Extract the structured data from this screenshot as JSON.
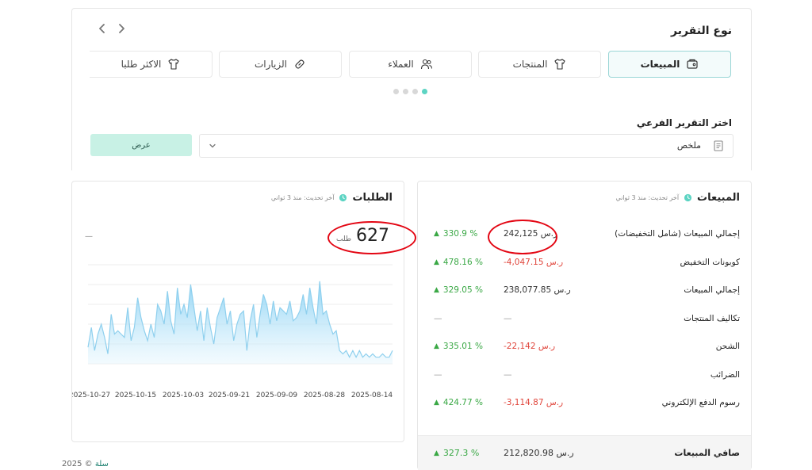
{
  "header": {
    "title": "نوع التقرير",
    "nav_icons": [
      "chevron-left-icon",
      "chevron-right-icon"
    ]
  },
  "tabs": [
    {
      "label": "المبيعات",
      "icon": "sales-icon",
      "active": true
    },
    {
      "label": "المنتجات",
      "icon": "shirt-icon",
      "active": false
    },
    {
      "label": "العملاء",
      "icon": "users-icon",
      "active": false
    },
    {
      "label": "الزيارات",
      "icon": "link-icon",
      "active": false
    },
    {
      "label": "الاكثر طلبا",
      "icon": "shirt-icon",
      "active": false
    }
  ],
  "carousel": {
    "dots": 4,
    "active_index": 3
  },
  "subreport": {
    "label": "اختر التقرير الفرعي",
    "selected": "ملخص",
    "view_button": "عرض"
  },
  "orders_panel": {
    "title": "الطلبات",
    "updated": "آخر تحديث: منذ 3 ثواني",
    "count": "627",
    "count_unit": "طلب",
    "placeholder": "—"
  },
  "sales_panel": {
    "title": "المبيعات",
    "updated": "آخر تحديث: منذ 3 ثواني",
    "rows": [
      {
        "label": "إجمالي المبيعات (شامل التخفيضات)",
        "value": "242,125 ر.س",
        "negative": false,
        "pct": "330.9 %"
      },
      {
        "label": "كوبونات التخفيض",
        "value": "-4,047.15 ر.س",
        "negative": true,
        "pct": "478.16 %"
      },
      {
        "label": "إجمالي المبيعات",
        "value": "238,077.85 ر.س",
        "negative": false,
        "pct": "329.05 %"
      },
      {
        "label": "تكاليف المنتجات",
        "value": "—",
        "negative": false,
        "pct": "—"
      },
      {
        "label": "الشحن",
        "value": "-22,142 ر.س",
        "negative": true,
        "pct": "335.01 %"
      },
      {
        "label": "الضرائب",
        "value": "—",
        "negative": false,
        "pct": "—"
      },
      {
        "label": "رسوم الدفع الإلكتروني",
        "value": "-3,114.87 ر.س",
        "negative": true,
        "pct": "424.77 %"
      }
    ],
    "net": {
      "label": "صافي المبيعات",
      "value": "212,820.98 ر.س",
      "pct": "327.3 %"
    }
  },
  "chart_data": {
    "type": "area",
    "title": "",
    "xlabel": "",
    "ylabel": "",
    "x_ticks": [
      "2025-10-27",
      "2025-10-15",
      "2025-10-03",
      "2025-09-21",
      "2025-09-09",
      "2025-08-28",
      "2025-08-14"
    ],
    "x_reversed": true,
    "ylim": [
      0,
      30
    ],
    "grid": true,
    "values": [
      5,
      11,
      4,
      9,
      12,
      8,
      3,
      15,
      9,
      10,
      9,
      8,
      17,
      7,
      11,
      20,
      14,
      10,
      7,
      12,
      8,
      18,
      16,
      12,
      22,
      13,
      9,
      23,
      15,
      18,
      14,
      24,
      17,
      10,
      16,
      7,
      17,
      11,
      6,
      14,
      17,
      20,
      12,
      16,
      7,
      12,
      15,
      16,
      4,
      13,
      18,
      8,
      15,
      21,
      18,
      12,
      19,
      13,
      17,
      16,
      15,
      19,
      13,
      14,
      16,
      21,
      15,
      23,
      17,
      12,
      25,
      15,
      16,
      12,
      9,
      10,
      4,
      3,
      4,
      2,
      4,
      2,
      4,
      2,
      3,
      2,
      3,
      2,
      2,
      3,
      2,
      2,
      4
    ],
    "color": "#8fd3f4"
  },
  "footer": {
    "text": "2025 ©",
    "brand": "سلة"
  }
}
